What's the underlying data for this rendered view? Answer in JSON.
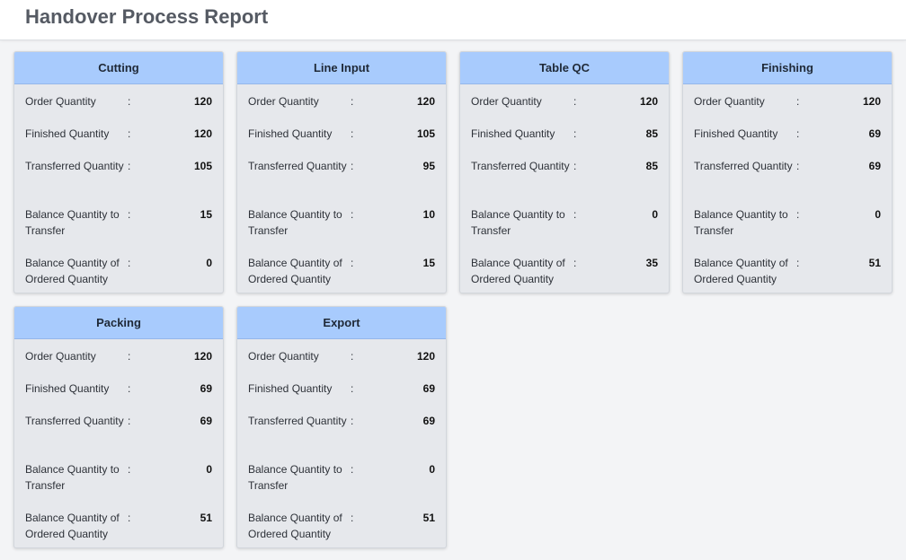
{
  "header": {
    "title": "Handover Process Report"
  },
  "labels": {
    "order_quantity": "Order Quantity",
    "finished_quantity": "Finished Quantity",
    "transferred_quantity": "Transferred Quantity",
    "balance_to_transfer": "Balance Quantity to Transfer",
    "balance_of_ordered": "Balance Quantity of Ordered Quantity",
    "separator": ":"
  },
  "cards": [
    {
      "title": "Cutting",
      "order": "120",
      "finished": "120",
      "transferred": "105",
      "balance_transfer": "15",
      "balance_ordered": "0"
    },
    {
      "title": "Line Input",
      "order": "120",
      "finished": "105",
      "transferred": "95",
      "balance_transfer": "10",
      "balance_ordered": "15"
    },
    {
      "title": "Table QC",
      "order": "120",
      "finished": "85",
      "transferred": "85",
      "balance_transfer": "0",
      "balance_ordered": "35"
    },
    {
      "title": "Finishing",
      "order": "120",
      "finished": "69",
      "transferred": "69",
      "balance_transfer": "0",
      "balance_ordered": "51"
    },
    {
      "title": "Packing",
      "order": "120",
      "finished": "69",
      "transferred": "69",
      "balance_transfer": "0",
      "balance_ordered": "51"
    },
    {
      "title": "Export",
      "order": "120",
      "finished": "69",
      "transferred": "69",
      "balance_transfer": "0",
      "balance_ordered": "51"
    }
  ]
}
